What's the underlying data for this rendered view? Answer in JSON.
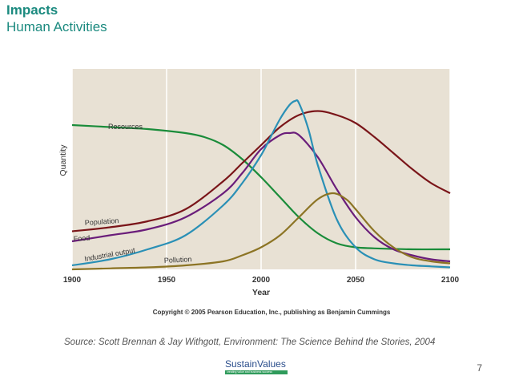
{
  "header": {
    "title": "Impacts",
    "subtitle": "Human Activities"
  },
  "footer": {
    "source": "Source: Scott Brennan & Jay Withgott, Environment: The Science Behind the Stories, 2004",
    "page_number": "7",
    "logo_text": "SustainValues",
    "logo_tagline": "creating value and business success"
  },
  "colors": {
    "title": "#1b8a7f",
    "plot_background": "#e8e1d4",
    "resources": "#1a8c3a",
    "population": "#7a1519",
    "food": "#6a1d7a",
    "industrial_output": "#2a90b6",
    "pollution": "#8c7424"
  },
  "chart_data": {
    "type": "line",
    "title": "",
    "xlabel": "Year",
    "ylabel": "Quantity",
    "xlim": [
      1900,
      2100
    ],
    "ylim": [
      0,
      100
    ],
    "x_ticks": [
      "1900",
      "1950",
      "2000",
      "2050",
      "2100"
    ],
    "grid": "vertical",
    "copyright": "Copyright © 2005 Pearson Education, Inc., publishing as Benjamin Cummings",
    "series": [
      {
        "name": "Resources",
        "color_key": "resources",
        "x": [
          1900,
          1920,
          1940,
          1960,
          1970,
          1980,
          1990,
          2000,
          2010,
          2020,
          2030,
          2040,
          2050,
          2060,
          2080,
          2100
        ],
        "y": [
          72,
          71,
          70,
          68,
          66,
          62,
          55,
          46,
          36,
          26,
          18,
          13,
          11,
          10.5,
          10,
          10
        ]
      },
      {
        "name": "Population",
        "color_key": "population",
        "x": [
          1900,
          1920,
          1940,
          1960,
          1980,
          1990,
          2000,
          2010,
          2020,
          2030,
          2040,
          2050,
          2060,
          2070,
          2080,
          2090,
          2100
        ],
        "y": [
          19,
          21,
          24,
          30,
          44,
          53,
          62,
          71,
          77,
          79,
          77,
          73,
          66,
          58,
          50,
          43,
          38
        ]
      },
      {
        "name": "Food",
        "color_key": "food",
        "x": [
          1900,
          1920,
          1940,
          1960,
          1980,
          1990,
          2000,
          2010,
          2015,
          2020,
          2030,
          2040,
          2050,
          2060,
          2070,
          2080,
          2090,
          2100
        ],
        "y": [
          14,
          17,
          20,
          26,
          38,
          48,
          60,
          67,
          68,
          67,
          56,
          40,
          26,
          16,
          10,
          7,
          5,
          4
        ]
      },
      {
        "name": "Industrial output",
        "color_key": "industrial_output",
        "x": [
          1900,
          1920,
          1940,
          1960,
          1980,
          1990,
          2000,
          2005,
          2010,
          2015,
          2018,
          2020,
          2025,
          2030,
          2040,
          2050,
          2060,
          2070,
          2080,
          2090,
          2100
        ],
        "y": [
          2,
          5,
          10,
          17,
          32,
          43,
          57,
          66,
          75,
          82,
          84,
          83,
          70,
          52,
          25,
          11,
          5,
          3,
          2,
          1.5,
          1
        ]
      },
      {
        "name": "Pollution",
        "color_key": "pollution",
        "x": [
          1900,
          1920,
          1940,
          1960,
          1980,
          1990,
          2000,
          2010,
          2020,
          2030,
          2038,
          2045,
          2050,
          2060,
          2070,
          2080,
          2090,
          2100
        ],
        "y": [
          0,
          0.5,
          1,
          2,
          4,
          7,
          11,
          17,
          26,
          35,
          38,
          35,
          30,
          19,
          11,
          6,
          4,
          3
        ]
      }
    ],
    "annotations": [
      {
        "text": "Resources",
        "series": "Resources"
      },
      {
        "text": "Population",
        "series": "Population"
      },
      {
        "text": "Food",
        "series": "Food"
      },
      {
        "text": "Industrial output",
        "series": "Industrial output"
      },
      {
        "text": "Pollution",
        "series": "Pollution"
      }
    ]
  }
}
